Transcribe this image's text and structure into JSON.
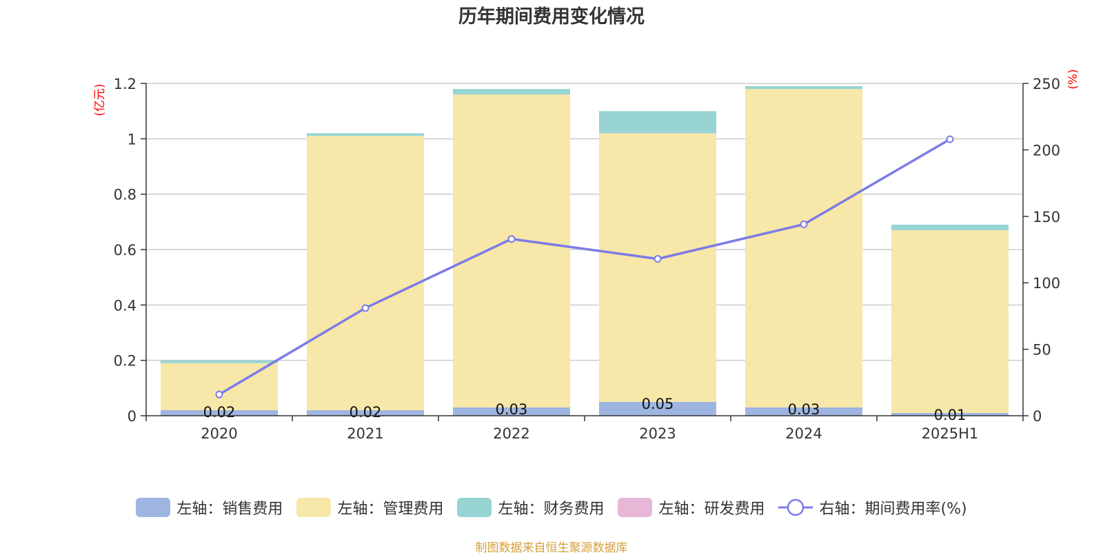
{
  "title": "历年期间费用变化情况",
  "source": "制图数据来自恒生聚源数据库",
  "chart_data": {
    "type": "bar",
    "stacked": true,
    "categories": [
      "2020",
      "2021",
      "2022",
      "2023",
      "2024",
      "2025H1"
    ],
    "y_left": {
      "unit": "(亿元)",
      "ylim": [
        0,
        1.2
      ],
      "ticks": [
        "0",
        "0.2",
        "0.4",
        "0.6",
        "0.8",
        "1",
        "1.2"
      ]
    },
    "y_right": {
      "unit": "(%)",
      "ylim": [
        0,
        250
      ],
      "ticks": [
        "0",
        "50",
        "100",
        "150",
        "200",
        "250"
      ]
    },
    "grid": true,
    "legend_position": "bottom",
    "series": [
      {
        "name": "左轴：销售费用",
        "axis": "left",
        "color": "#9db5e0",
        "values": [
          0.02,
          0.02,
          0.03,
          0.05,
          0.03,
          0.01
        ],
        "labels": [
          "0.02",
          "0.02",
          "0.03",
          "0.05",
          "0.03",
          "0.01"
        ]
      },
      {
        "name": "左轴：管理费用",
        "axis": "left",
        "color": "#f7e7a8",
        "values": [
          0.17,
          0.99,
          1.13,
          0.97,
          1.15,
          0.66
        ]
      },
      {
        "name": "左轴：财务费用",
        "axis": "left",
        "color": "#98d4d4",
        "values": [
          0.01,
          0.01,
          0.02,
          0.08,
          0.01,
          0.02
        ]
      },
      {
        "name": "左轴：研发费用",
        "axis": "left",
        "color": "#e8b7d8",
        "values": [
          0,
          0,
          0,
          0,
          0,
          0
        ]
      },
      {
        "name": "右轴：期间费用率(%)",
        "axis": "right",
        "type": "line",
        "color": "#7b7be8",
        "values": [
          16,
          81,
          133,
          118,
          144,
          208
        ]
      }
    ]
  }
}
